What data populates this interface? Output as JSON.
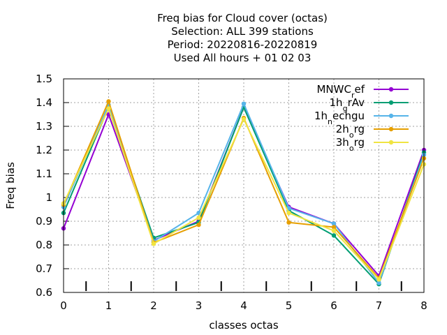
{
  "chart_data": {
    "type": "line",
    "title_lines": [
      "Freq bias  for Cloud cover (octas)",
      "Selection: ALL    399 stations",
      "Period: 20220816-20220819",
      "Used  All hours + 01 02 03"
    ],
    "xlabel": "classes octas",
    "ylabel": "Freq bias",
    "xlim": [
      0,
      8
    ],
    "ylim": [
      0.6,
      1.5
    ],
    "x_ticks": [
      "0",
      "1",
      "2",
      "3",
      "4",
      "5",
      "6",
      "7",
      "8"
    ],
    "y_ticks": [
      "0.6",
      "0.7",
      "0.8",
      "0.9",
      "1",
      "1.1",
      "1.2",
      "1.3",
      "1.4",
      "1.5"
    ],
    "grid": true,
    "legend_position": "top-right",
    "x": [
      0,
      1,
      2,
      3,
      4,
      5,
      6,
      7,
      8
    ],
    "series": [
      {
        "name": "MNWC",
        "sub": "r",
        "tail": "ef",
        "color": "#9400d3",
        "values": [
          0.87,
          1.35,
          0.82,
          0.9,
          1.38,
          0.96,
          0.89,
          0.67,
          1.2
        ]
      },
      {
        "name": "1h",
        "sub": "g",
        "tail": "rAv",
        "color": "#009e73",
        "values": [
          0.935,
          1.38,
          0.83,
          0.895,
          1.38,
          0.945,
          0.84,
          0.635,
          1.19
        ]
      },
      {
        "name": "1h",
        "sub": "n",
        "tail": "echgu",
        "color": "#56b4e9",
        "values": [
          0.96,
          1.39,
          0.815,
          0.935,
          1.395,
          0.955,
          0.89,
          0.64,
          1.18
        ]
      },
      {
        "name": "2h",
        "sub": "o",
        "tail": "rg",
        "color": "#e69f00",
        "values": [
          0.97,
          1.405,
          0.81,
          0.885,
          1.335,
          0.895,
          0.875,
          0.66,
          1.165
        ]
      },
      {
        "name": "3h",
        "sub": "o",
        "tail": "rg",
        "color": "#f0e442",
        "values": [
          0.975,
          1.375,
          0.805,
          0.915,
          1.33,
          0.935,
          0.86,
          0.655,
          1.14
        ]
      }
    ]
  }
}
